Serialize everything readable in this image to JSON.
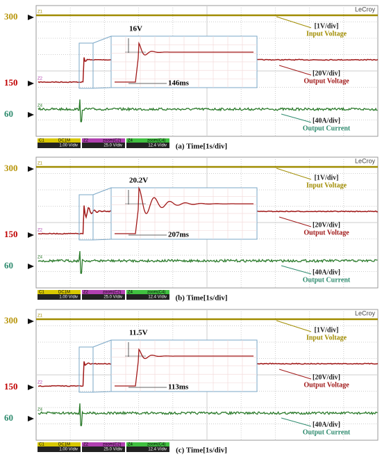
{
  "scope": {
    "brand": "LeCroy",
    "levels": [
      "300",
      "150",
      "60"
    ],
    "channels": [
      "Z1",
      "Z2",
      "Z4"
    ],
    "annotations": [
      [
        "[1V/div]",
        "Input Voltage"
      ],
      [
        "[20V/div]",
        "Output Voltage"
      ],
      [
        "[40A/div]",
        "Output Current"
      ]
    ],
    "status": [
      [
        "C1",
        "DC1M",
        "1.00 V/div"
      ],
      [
        "Z2",
        "zoom(C2)",
        "25.0 V/div"
      ],
      [
        "Z4",
        "zoom(C4)",
        "12.4 V/div"
      ]
    ]
  },
  "panels": [
    {
      "caption": "(a)  Time[1s/div]",
      "overshoot": "16V",
      "settling": "146ms"
    },
    {
      "caption": "(b)  Time[1s/div]",
      "overshoot": "20.2V",
      "settling": "207ms"
    },
    {
      "caption": "(c)  Time[1s/div]",
      "overshoot": "11.5V",
      "settling": "113ms"
    }
  ]
}
